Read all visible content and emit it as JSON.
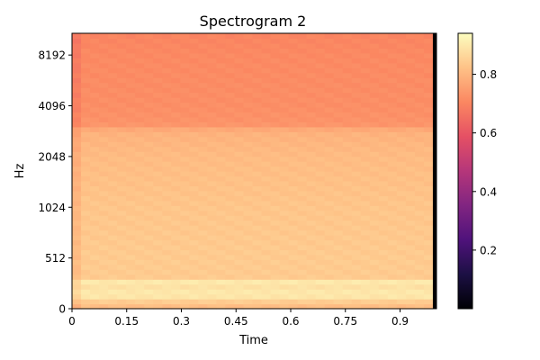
{
  "chart_data": {
    "type": "heatmap",
    "title": "Spectrogram 2",
    "xlabel": "Time",
    "ylabel": "Hz",
    "xlim": [
      0,
      1.0
    ],
    "x_ticks": [
      0,
      0.15,
      0.3,
      0.45,
      0.6,
      0.75,
      0.9
    ],
    "x_tick_labels": [
      "0",
      "0.15",
      "0.3",
      "0.45",
      "0.6",
      "0.75",
      "0.9"
    ],
    "y_scale": "symlog",
    "ylim": [
      0,
      11025
    ],
    "y_ticks": [
      0,
      512,
      1024,
      2048,
      4096,
      8192
    ],
    "y_tick_labels": [
      "0",
      "512",
      "1024",
      "2048",
      "4096",
      "8192"
    ],
    "colormap": "magma",
    "colorbar": {
      "range": [
        0,
        0.94
      ],
      "ticks": [
        0.2,
        0.4,
        0.6,
        0.8
      ],
      "tick_labels": [
        "0.2",
        "0.4",
        "0.6",
        "0.8"
      ]
    },
    "time_bins": 40,
    "trailing_silence_start": 0.99,
    "frequency_profile": [
      {
        "freq_hz": 0,
        "value": 0.8
      },
      {
        "freq_hz": 100,
        "value": 0.86
      },
      {
        "freq_hz": 150,
        "value": 0.93
      },
      {
        "freq_hz": 200,
        "value": 0.86
      },
      {
        "freq_hz": 256,
        "value": 0.92
      },
      {
        "freq_hz": 320,
        "value": 0.84
      },
      {
        "freq_hz": 512,
        "value": 0.84
      },
      {
        "freq_hz": 1024,
        "value": 0.83
      },
      {
        "freq_hz": 2048,
        "value": 0.81
      },
      {
        "freq_hz": 2900,
        "value": 0.79
      },
      {
        "freq_hz": 3200,
        "value": 0.73
      },
      {
        "freq_hz": 4096,
        "value": 0.72
      },
      {
        "freq_hz": 8192,
        "value": 0.71
      },
      {
        "freq_hz": 11025,
        "value": 0.7
      }
    ]
  }
}
